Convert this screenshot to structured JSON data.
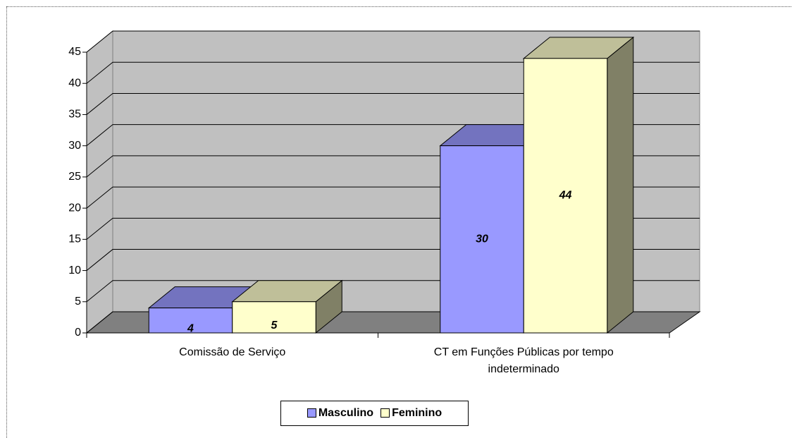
{
  "chart_data": {
    "type": "bar3d",
    "categories": [
      "Comissão de Serviço",
      "CT em Funções Públicas por tempo indeterminado"
    ],
    "series": [
      {
        "name": "Masculino",
        "color": "#9999ff",
        "values": [
          4,
          30
        ]
      },
      {
        "name": "Feminino",
        "color": "#ffffcc",
        "values": [
          5,
          44
        ]
      }
    ],
    "ylim": [
      0,
      45
    ],
    "yticks": [
      0,
      5,
      10,
      15,
      20,
      25,
      30,
      35,
      40,
      45
    ],
    "grid": true,
    "legend": "bottom"
  }
}
